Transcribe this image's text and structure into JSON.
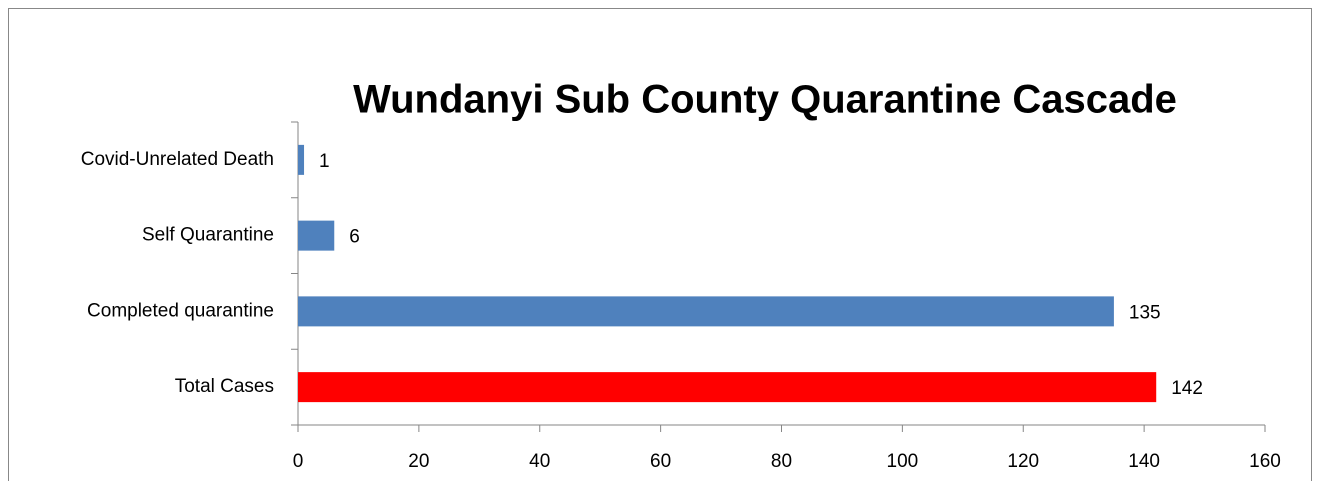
{
  "chart_data": {
    "type": "hbar",
    "title": "Wundanyi Sub County Quarantine Cascade",
    "categories": [
      "Covid-Unrelated Death",
      "Self Quarantine",
      "Completed quarantine",
      "Total Cases"
    ],
    "values": [
      1,
      6,
      135,
      142
    ],
    "colors": [
      "#4f81bd",
      "#4f81bd",
      "#4f81bd",
      "#ff0000"
    ],
    "xlim": [
      0,
      160
    ],
    "xticks": [
      0,
      20,
      40,
      60,
      80,
      100,
      120,
      140,
      160
    ],
    "grid": false
  }
}
